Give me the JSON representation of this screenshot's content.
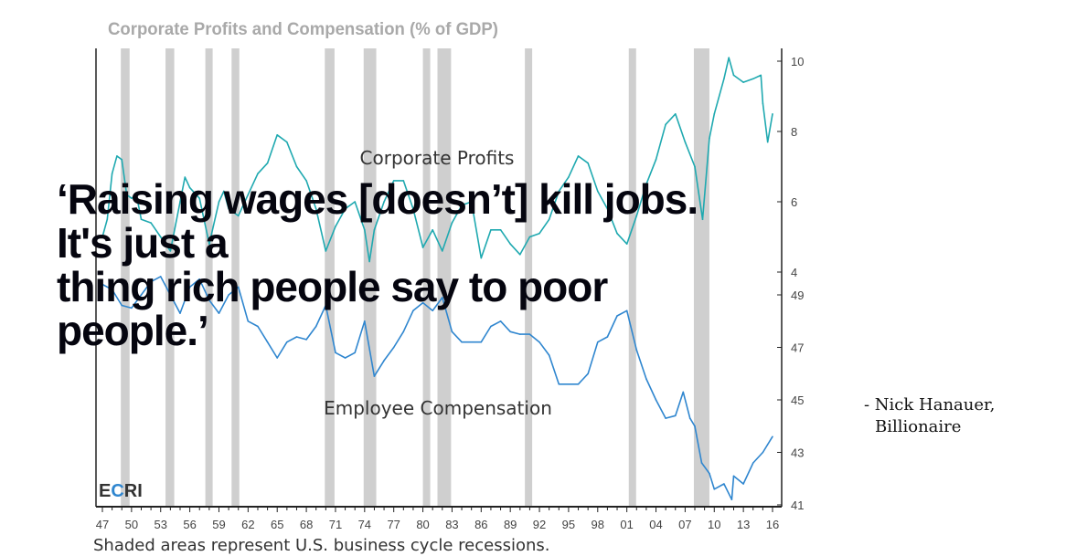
{
  "chart_data": {
    "type": "line",
    "title": "Corporate Profits and Compensation (% of GDP)",
    "footnote": "Shaded areas represent U.S. business cycle recessions.",
    "source_logo": {
      "pre": "E",
      "accent": "C",
      "post": "RI"
    },
    "x_tick_labels": [
      "47",
      "50",
      "53",
      "56",
      "59",
      "62",
      "65",
      "68",
      "71",
      "74",
      "77",
      "80",
      "83",
      "86",
      "89",
      "92",
      "95",
      "98",
      "01",
      "04",
      "07",
      "10",
      "13",
      "16"
    ],
    "xlim": [
      1947,
      2016
    ],
    "recessions": [
      [
        1948.9,
        1949.8
      ],
      [
        1953.5,
        1954.4
      ],
      [
        1957.6,
        1958.3
      ],
      [
        1960.3,
        1961.1
      ],
      [
        1969.9,
        1970.9
      ],
      [
        1973.9,
        1975.2
      ],
      [
        1980.0,
        1980.5
      ],
      [
        1981.5,
        1982.9
      ],
      [
        1990.5,
        1991.2
      ],
      [
        2001.2,
        2001.9
      ],
      [
        2007.9,
        2009.5
      ]
    ],
    "series": [
      {
        "name": "Corporate Profits",
        "axis": "right-upper",
        "ylim": [
          4,
          10
        ],
        "ticks": [
          "10",
          "8",
          "6",
          "4"
        ],
        "color": "#1fa9b0",
        "x": [
          1947,
          1947.5,
          1948,
          1948.5,
          1949,
          1949.5,
          1950,
          1950.5,
          1951,
          1952,
          1953,
          1954,
          1955,
          1955.5,
          1956,
          1957,
          1958,
          1959,
          1959.5,
          1960,
          1961,
          1962,
          1963,
          1964,
          1965,
          1966,
          1967,
          1968,
          1969,
          1970,
          1971,
          1972,
          1973,
          1974,
          1974.5,
          1975,
          1976,
          1977,
          1978,
          1979,
          1980,
          1981,
          1982,
          1983,
          1984,
          1985,
          1986,
          1987,
          1988,
          1989,
          1990,
          1991,
          1992,
          1993,
          1994,
          1995,
          1996,
          1997,
          1998,
          1999,
          2000,
          2001,
          2002,
          2003,
          2004,
          2005,
          2006,
          2007,
          2008,
          2008.8,
          2009.5,
          2010,
          2011,
          2011.5,
          2012,
          2013,
          2014,
          2014.8,
          2015,
          2015.5,
          2016
        ],
        "values": [
          5.0,
          5.5,
          6.8,
          7.3,
          7.2,
          6.2,
          6.1,
          6.2,
          5.5,
          5.4,
          5.0,
          4.6,
          6.0,
          6.7,
          6.4,
          6.1,
          4.8,
          6.0,
          6.3,
          5.8,
          5.6,
          6.2,
          6.8,
          7.1,
          7.9,
          7.7,
          7.0,
          6.6,
          5.8,
          4.6,
          5.3,
          5.8,
          6.0,
          5.2,
          4.3,
          5.2,
          6.0,
          6.6,
          6.6,
          5.8,
          4.7,
          5.2,
          4.6,
          5.4,
          5.9,
          6.0,
          4.4,
          5.2,
          5.2,
          4.8,
          4.5,
          5.0,
          5.1,
          5.5,
          6.3,
          6.7,
          7.3,
          7.1,
          6.3,
          5.8,
          5.1,
          4.8,
          5.6,
          6.5,
          7.2,
          8.2,
          8.5,
          7.7,
          7.0,
          5.5,
          7.8,
          8.5,
          9.5,
          10.1,
          9.6,
          9.4,
          9.5,
          9.6,
          8.8,
          7.7,
          8.5
        ]
      },
      {
        "name": "Employee Compensation",
        "axis": "right-lower",
        "ylim": [
          41,
          49
        ],
        "ticks": [
          "49",
          "47",
          "45",
          "43",
          "41"
        ],
        "color": "#2f86cf",
        "x": [
          1947,
          1948,
          1949,
          1950,
          1951,
          1952,
          1953,
          1954,
          1955,
          1956,
          1957,
          1958,
          1959,
          1960,
          1961,
          1962,
          1963,
          1964,
          1965,
          1966,
          1967,
          1968,
          1969,
          1970,
          1971,
          1972,
          1973,
          1974,
          1975,
          1976,
          1977,
          1978,
          1979,
          1980,
          1981,
          1982,
          1983,
          1984,
          1985,
          1986,
          1987,
          1988,
          1989,
          1990,
          1991,
          1992,
          1993,
          1994,
          1995,
          1996,
          1997,
          1998,
          1999,
          2000,
          2001,
          2002,
          2003,
          2004,
          2005,
          2006,
          2006.8,
          2007.5,
          2008,
          2008.7,
          2009.5,
          2010,
          2011,
          2011.8,
          2012,
          2013,
          2014,
          2015,
          2016
        ],
        "values": [
          49.4,
          49.2,
          48.6,
          48.5,
          49.0,
          49.5,
          49.7,
          49.0,
          48.3,
          49.3,
          49.6,
          48.8,
          48.3,
          49.0,
          49.3,
          48.0,
          47.8,
          47.2,
          46.6,
          47.2,
          47.4,
          47.3,
          47.8,
          48.6,
          46.8,
          46.6,
          46.8,
          48.0,
          45.9,
          46.5,
          47.0,
          47.6,
          48.4,
          48.7,
          48.4,
          48.9,
          47.6,
          47.2,
          47.2,
          47.2,
          47.8,
          48.0,
          47.6,
          47.5,
          47.5,
          47.2,
          46.7,
          45.6,
          45.6,
          45.6,
          46.0,
          47.2,
          47.4,
          48.2,
          48.4,
          46.9,
          45.8,
          45.0,
          44.3,
          44.4,
          45.3,
          44.3,
          44.0,
          42.6,
          42.2,
          41.6,
          41.8,
          41.2,
          42.1,
          41.8,
          42.6,
          43.0,
          43.6
        ]
      }
    ]
  },
  "quote": {
    "line1": "‘Raising wages [doesn’t] kill jobs. It's just a",
    "line2": "thing rich people say to poor people.’",
    "attribution_name": "- Nick Hanauer,",
    "attribution_title": "Billionaire"
  }
}
